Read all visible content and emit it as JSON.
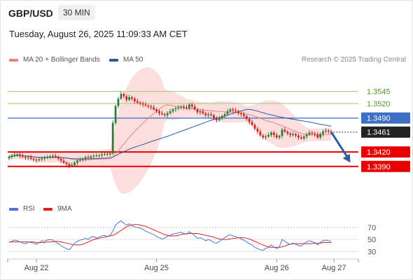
{
  "header": {
    "pair": "GBP/USD",
    "timeframe": "30 MIN",
    "datetime": "Tuesday, August 26, 2025 11:09:33 AM CET"
  },
  "legend": {
    "ma20": "MA 20 + Bollinger Bands",
    "ma50": "MA 50",
    "research": "Research © 2025 Trading Central",
    "rsi": "RSI",
    "ma9": "9MA"
  },
  "colors": {
    "ma20": "#f08080",
    "ma50": "#2e5a9c",
    "band": "#fbd3d3",
    "candle_up": "#2e7d32",
    "candle_down": "#c62828",
    "resistance": "#9acd70",
    "support": "#e60000",
    "pivot": "#4a78c8",
    "rsi": "#4a78d0",
    "ma9": "#e02020",
    "arrow": "#2f5e9e"
  },
  "chart_data": [
    {
      "type": "candlestick",
      "title": "",
      "y_scale": {
        "top_value": 1.3585,
        "bottom_value": 1.3355
      },
      "x_ticks": [
        {
          "label": "Aug 22",
          "index": 10
        },
        {
          "label": "Aug 25",
          "index": 54
        },
        {
          "label": "Aug 26",
          "index": 98
        },
        {
          "label": "Aug 27",
          "index": 119
        }
      ],
      "levels": [
        {
          "value": 1.3545,
          "label": "1.3545",
          "kind": "resistance"
        },
        {
          "value": 1.352,
          "label": "1.3520",
          "kind": "resistance"
        },
        {
          "value": 1.349,
          "label": "1.3490",
          "kind": "pivot"
        },
        {
          "value": 1.3461,
          "label": "1.3461",
          "kind": "last"
        },
        {
          "value": 1.342,
          "label": "1.3420",
          "kind": "support"
        },
        {
          "value": 1.339,
          "label": "1.3390",
          "kind": "support"
        }
      ],
      "forecast": {
        "from_index": 118,
        "from": 1.3461,
        "to_index": 125,
        "to": 1.3398
      },
      "candles_close": [
        1.341,
        1.3412,
        1.3414,
        1.3415,
        1.3412,
        1.341,
        1.3408,
        1.3409,
        1.3406,
        1.3404,
        1.3403,
        1.3405,
        1.3407,
        1.3408,
        1.3409,
        1.3411,
        1.3412,
        1.341,
        1.3406,
        1.3402,
        1.3398,
        1.3395,
        1.3391,
        1.3393,
        1.3398,
        1.3402,
        1.3404,
        1.3406,
        1.3409,
        1.3408,
        1.3411,
        1.3412,
        1.3412,
        1.3413,
        1.3415,
        1.3416,
        1.3415,
        1.3417,
        1.348,
        1.3515,
        1.353,
        1.354,
        1.3535,
        1.3528,
        1.3533,
        1.353,
        1.3525,
        1.3522,
        1.352,
        1.3518,
        1.3516,
        1.3514,
        1.3512,
        1.3508,
        1.3504,
        1.35,
        1.3498,
        1.3496,
        1.35,
        1.3504,
        1.3508,
        1.351,
        1.3512,
        1.3514,
        1.3512,
        1.351,
        1.3518,
        1.3514,
        1.3508,
        1.3502,
        1.3504,
        1.35,
        1.3496,
        1.3498,
        1.3496,
        1.349,
        1.3486,
        1.349,
        1.3494,
        1.3498,
        1.3504,
        1.3508,
        1.3506,
        1.3504,
        1.35,
        1.3498,
        1.3494,
        1.3488,
        1.3482,
        1.3476,
        1.3468,
        1.3462,
        1.3454,
        1.345,
        1.3452,
        1.3455,
        1.346,
        1.3455,
        1.345,
        1.3453,
        1.3466,
        1.3462,
        1.3458,
        1.3455,
        1.3457,
        1.3454,
        1.345,
        1.3448,
        1.3452,
        1.3456,
        1.346,
        1.3458,
        1.3456,
        1.345,
        1.3457,
        1.3462,
        1.3464,
        1.3462,
        1.3461
      ]
    },
    {
      "type": "line",
      "title": "",
      "series_names": [
        "RSI",
        "9MA"
      ],
      "y_ticks": [
        70,
        50,
        30
      ],
      "ylim": [
        20,
        85
      ],
      "rsi": [
        45,
        47,
        49,
        48,
        46,
        44,
        43,
        46,
        45,
        44,
        42,
        45,
        48,
        47,
        49,
        50,
        49,
        46,
        43,
        40,
        37,
        35,
        33,
        38,
        44,
        47,
        49,
        50,
        52,
        50,
        54,
        55,
        52,
        54,
        56,
        57,
        55,
        57,
        64,
        74,
        78,
        81,
        77,
        74,
        76,
        73,
        71,
        70,
        69,
        67,
        64,
        62,
        60,
        58,
        55,
        53,
        51,
        52,
        55,
        57,
        59,
        60,
        61,
        62,
        60,
        59,
        63,
        60,
        56,
        52,
        53,
        51,
        48,
        50,
        48,
        45,
        44,
        47,
        50,
        53,
        56,
        58,
        56,
        55,
        53,
        51,
        49,
        46,
        43,
        41,
        37,
        35,
        33,
        32,
        35,
        37,
        41,
        38,
        35,
        38,
        50,
        47,
        44,
        42,
        44,
        42,
        40,
        39,
        43,
        46,
        48,
        46,
        45,
        41,
        45,
        48,
        49,
        48,
        47
      ],
      "ma9": [
        46,
        46,
        46,
        46,
        46,
        46,
        46,
        46,
        46,
        46,
        45,
        45,
        45,
        45,
        46,
        46,
        46,
        47,
        47,
        46,
        45,
        44,
        43,
        42,
        41,
        41,
        41,
        42,
        44,
        46,
        48,
        50,
        51,
        52,
        53,
        54,
        55,
        56,
        57,
        59,
        62,
        65,
        68,
        71,
        73,
        74,
        75,
        75,
        74,
        73,
        72,
        70,
        68,
        66,
        64,
        62,
        60,
        58,
        57,
        56,
        56,
        56,
        57,
        58,
        59,
        59,
        60,
        60,
        60,
        60,
        59,
        58,
        57,
        56,
        55,
        54,
        52,
        51,
        50,
        50,
        50,
        51,
        52,
        52,
        53,
        53,
        53,
        52,
        51,
        49,
        47,
        45,
        43,
        41,
        39,
        38,
        37,
        37,
        37,
        37,
        38,
        39,
        41,
        42,
        43,
        43,
        43,
        43,
        43,
        43,
        43,
        43,
        44,
        44,
        44,
        45,
        45,
        45,
        45
      ]
    }
  ]
}
